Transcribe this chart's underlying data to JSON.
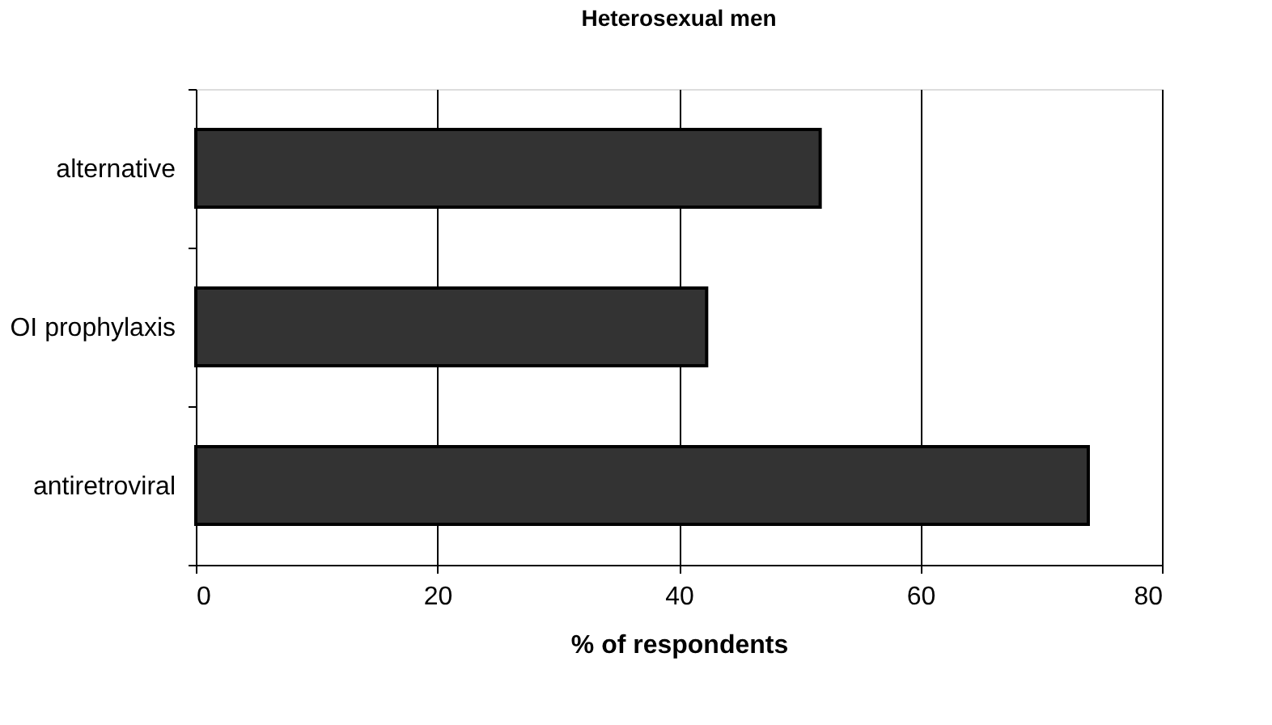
{
  "chart_data": {
    "type": "bar",
    "orientation": "horizontal",
    "title": "Heterosexual men",
    "xlabel": "% of respondents",
    "categories": [
      "alternative",
      "OI prophylaxis",
      "antiretroviral"
    ],
    "values": [
      51.7,
      42.3,
      73.9
    ],
    "color": "#333333",
    "xlim": [
      0,
      80
    ],
    "xticks": [
      0,
      20,
      40,
      60,
      80
    ],
    "grid": "x"
  }
}
